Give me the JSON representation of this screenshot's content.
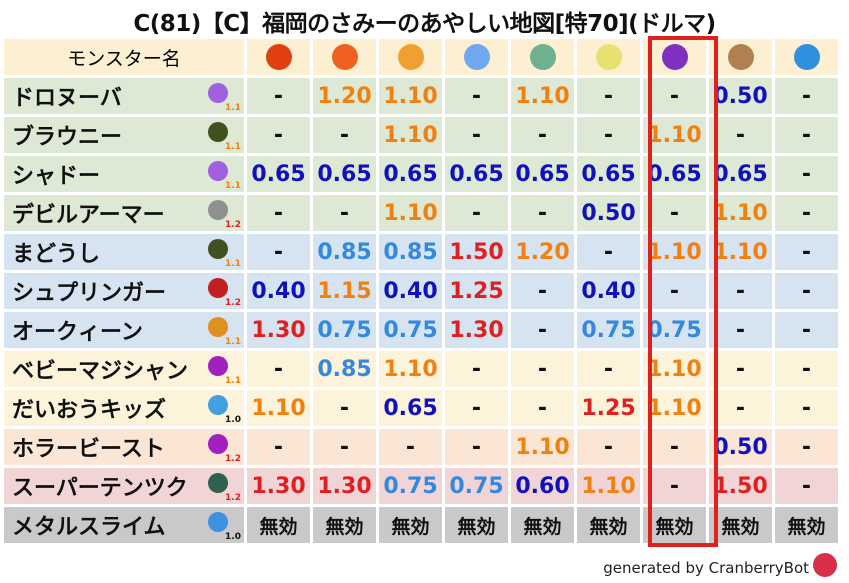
{
  "title": "C(81)【C】福岡のさみーのあやしい地図[特70](ドルマ)",
  "header": {
    "name_label": "モンスター名",
    "elements": [
      {
        "icon": "fire-ball-icon",
        "color": "#e04010"
      },
      {
        "icon": "flame-icon",
        "color": "#f06020"
      },
      {
        "icon": "explosion-icon",
        "color": "#f0a030"
      },
      {
        "icon": "ice-flower-icon",
        "color": "#70a8f0"
      },
      {
        "icon": "tornado-icon",
        "color": "#70b090"
      },
      {
        "icon": "lightning-star-icon",
        "color": "#e8e070"
      },
      {
        "icon": "dark-vortex-icon",
        "color": "#8030c0"
      },
      {
        "icon": "earth-rock-icon",
        "color": "#b08050"
      },
      {
        "icon": "water-wave-icon",
        "color": "#3090e0"
      }
    ],
    "highlighted_column": 6
  },
  "colors": {
    "high": "#e02020",
    "mid_high": "#f08010",
    "low": "#1010c0",
    "mid_low": "#3388e0",
    "highlight": "#e0201c"
  },
  "rows": [
    {
      "name": "ドロヌーバ",
      "race": "slime-blob-icon",
      "race_color": "#a060e0",
      "mult": "1.1",
      "band": "g",
      "values": [
        "-",
        "1.20",
        "1.10",
        "-",
        "1.10",
        "-",
        "-",
        "0.50",
        "-"
      ]
    },
    {
      "name": "ブラウニー",
      "race": "hooded-ghost-icon",
      "race_color": "#405020",
      "mult": "1.1",
      "band": "g",
      "values": [
        "-",
        "-",
        "1.10",
        "-",
        "-",
        "-",
        "1.10",
        "-",
        "-"
      ]
    },
    {
      "name": "シャドー",
      "race": "slime-blob-icon",
      "race_color": "#a060e0",
      "mult": "1.1",
      "band": "g",
      "values": [
        "0.65",
        "0.65",
        "0.65",
        "0.65",
        "0.65",
        "0.65",
        "0.65",
        "0.65",
        "-"
      ]
    },
    {
      "name": "デビルアーマー",
      "race": "brick-wall-icon",
      "race_color": "#909090",
      "mult": "1.2",
      "band": "g",
      "values": [
        "-",
        "-",
        "1.10",
        "-",
        "-",
        "0.50",
        "-",
        "1.10",
        "-"
      ]
    },
    {
      "name": "まどうし",
      "race": "hooded-ghost-icon",
      "race_color": "#405020",
      "mult": "1.1",
      "band": "b",
      "values": [
        "-",
        "0.85",
        "0.85",
        "1.50",
        "1.20",
        "-",
        "1.10",
        "1.10",
        "-"
      ]
    },
    {
      "name": "シュプリンガー",
      "race": "dragon-head-icon",
      "race_color": "#c02020",
      "mult": "1.2",
      "band": "b",
      "values": [
        "0.40",
        "1.15",
        "0.40",
        "1.25",
        "-",
        "0.40",
        "-",
        "-",
        "-"
      ]
    },
    {
      "name": "オークィーン",
      "race": "paw-icon",
      "race_color": "#e09020",
      "mult": "1.1",
      "band": "b",
      "values": [
        "1.30",
        "0.75",
        "0.75",
        "1.30",
        "-",
        "0.75",
        "0.75",
        "-",
        "-"
      ]
    },
    {
      "name": "ベビーマジシャン",
      "race": "trident-icon",
      "race_color": "#a020c0",
      "mult": "1.1",
      "band": "y",
      "values": [
        "-",
        "0.85",
        "1.10",
        "-",
        "-",
        "-",
        "1.10",
        "-",
        "-"
      ]
    },
    {
      "name": "だいおうキッズ",
      "race": "water-drop-icon",
      "race_color": "#40a0e0",
      "mult": "1.0",
      "band": "y",
      "values": [
        "1.10",
        "-",
        "0.65",
        "-",
        "-",
        "1.25",
        "1.10",
        "-",
        "-"
      ]
    },
    {
      "name": "ホラービースト",
      "race": "trident-icon",
      "race_color": "#a020c0",
      "mult": "1.2",
      "band": "p",
      "values": [
        "-",
        "-",
        "-",
        "-",
        "1.10",
        "-",
        "-",
        "0.50",
        "-"
      ]
    },
    {
      "name": "スーパーテンツク",
      "race": "insect-icon",
      "race_color": "#306050",
      "mult": "1.2",
      "band": "r",
      "values": [
        "1.30",
        "1.30",
        "0.75",
        "0.75",
        "0.60",
        "1.10",
        "-",
        "1.50",
        "-"
      ]
    },
    {
      "name": "メタルスライム",
      "race": "slime-icon",
      "race_color": "#4090e0",
      "mult": "1.0",
      "band": "s",
      "values": [
        "無効",
        "無効",
        "無効",
        "無効",
        "無効",
        "無効",
        "無効",
        "無効",
        "無効"
      ]
    }
  ],
  "footer": "generated by CranberryBot"
}
